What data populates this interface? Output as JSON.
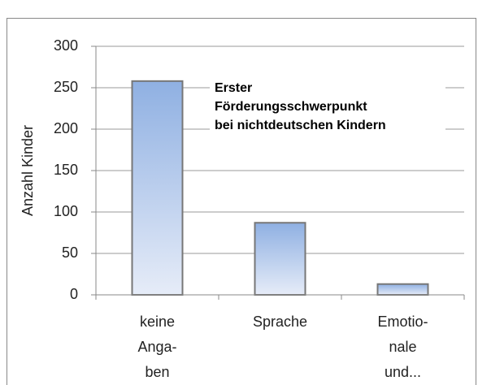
{
  "chart_data": {
    "type": "bar",
    "annotation": [
      "Erster",
      "Förderungsschwerpunkt",
      "bei nichtdeutschen Kindern"
    ],
    "y_label": "Anzahl Kinder",
    "categories": [
      [
        "keine",
        "Anga-",
        "ben"
      ],
      [
        "Sprache"
      ],
      [
        "Emotio-",
        "nale",
        "und..."
      ]
    ],
    "values": [
      258,
      87,
      13
    ],
    "color": "#8fb0e2",
    "ylim": [
      0,
      300
    ],
    "yticks": [
      0,
      50,
      100,
      150,
      200,
      250,
      300
    ],
    "grid": true
  }
}
